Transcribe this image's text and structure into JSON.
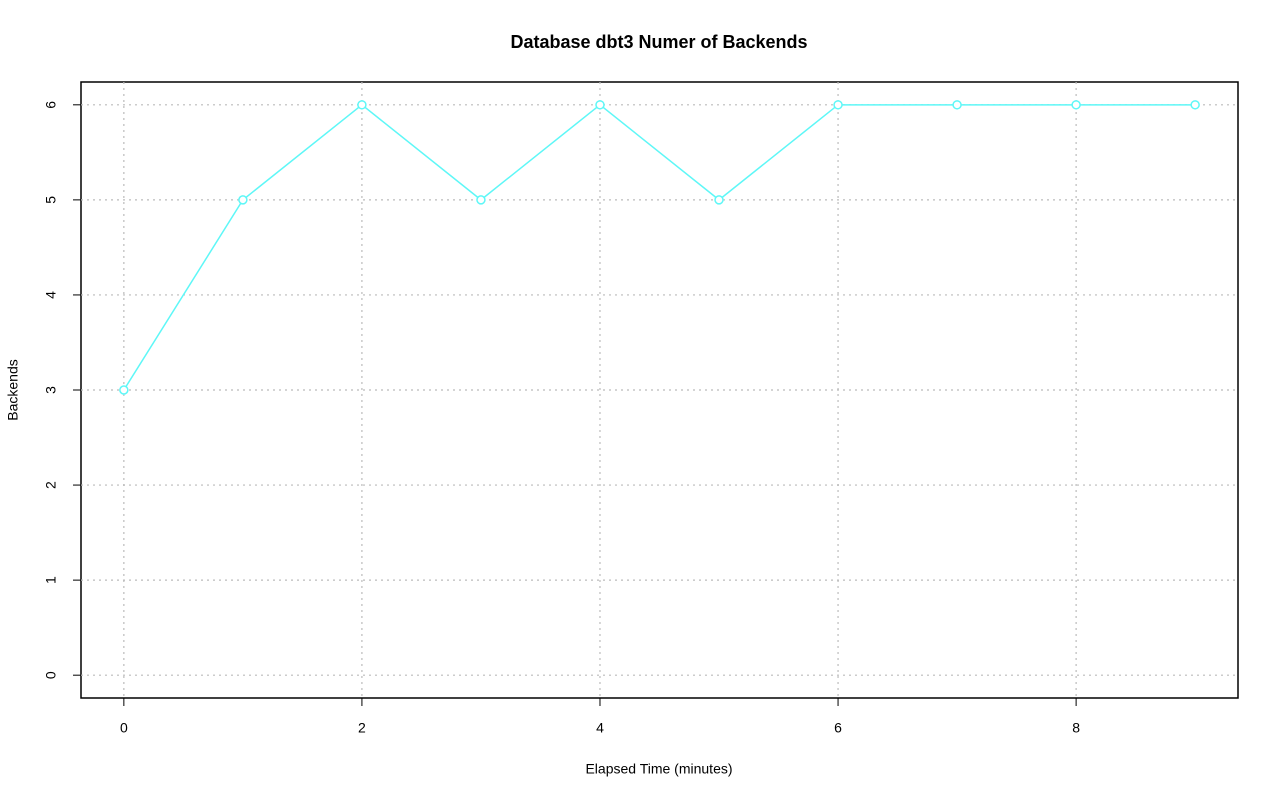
{
  "chart_data": {
    "type": "line",
    "title": "Database dbt3 Numer of Backends",
    "x_label": "Elapsed Time (minutes)",
    "y_label": "Backends",
    "x": [
      0,
      1,
      2,
      3,
      4,
      5,
      6,
      7,
      8,
      9
    ],
    "series": [
      {
        "name": "Backends",
        "color": "#5ef7f7",
        "values": [
          3,
          5,
          6,
          5,
          6,
          5,
          6,
          6,
          6,
          6
        ]
      }
    ],
    "xlim": [
      -0.36,
      9.36
    ],
    "xticks": [
      0,
      2,
      4,
      6,
      8
    ],
    "ylim": [
      -0.24,
      6.24
    ],
    "yticks": [
      0,
      1,
      2,
      3,
      4,
      5,
      6
    ],
    "grid": true
  }
}
